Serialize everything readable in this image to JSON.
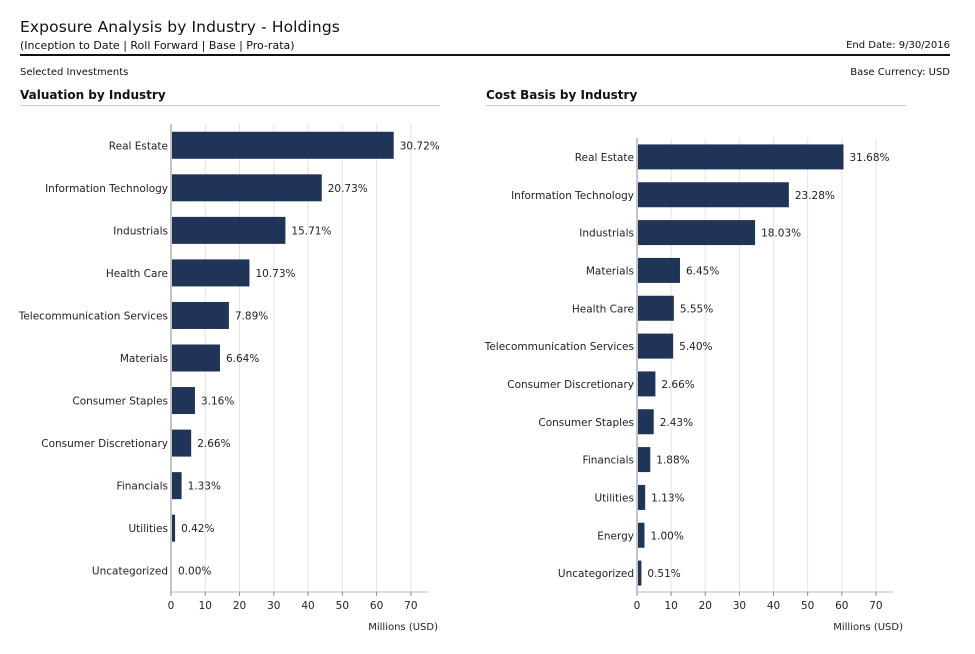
{
  "header": {
    "title": "Exposure Analysis by Industry - Holdings",
    "subtitle": "(Inception to Date | Roll Forward | Base | Pro-rata)",
    "end_date": "End Date: 9/30/2016",
    "selected": "Selected Investments",
    "currency": "Base Currency: USD"
  },
  "colors": {
    "bar": "#1f3457",
    "grid": "#e3e3e3",
    "axis": "#8a8a8a"
  },
  "chart_data": [
    {
      "type": "bar",
      "orientation": "horizontal",
      "title": "Valuation by Industry",
      "xlabel": "Millions (USD)",
      "ylabel": "",
      "xlim": [
        0,
        75
      ],
      "xticks": [
        0,
        10,
        20,
        30,
        40,
        50,
        60,
        70
      ],
      "categories": [
        "Real Estate",
        "Information Technology",
        "Industrials",
        "Health Care",
        "Telecommunication Services",
        "Materials",
        "Consumer Staples",
        "Consumer Discretionary",
        "Financials",
        "Utilities",
        "Uncategorized"
      ],
      "values": [
        64.7,
        43.7,
        33.1,
        22.6,
        16.6,
        14.0,
        6.7,
        5.6,
        2.8,
        0.9,
        0.0
      ],
      "labels": [
        "30.72%",
        "20.73%",
        "15.71%",
        "10.73%",
        "7.89%",
        "6.64%",
        "3.16%",
        "2.66%",
        "1.33%",
        "0.42%",
        "0.00%"
      ],
      "grid": true
    },
    {
      "type": "bar",
      "orientation": "horizontal",
      "title": "Cost Basis by Industry",
      "xlabel": "Millions (USD)",
      "ylabel": "",
      "xlim": [
        0,
        75
      ],
      "xticks": [
        0,
        10,
        20,
        30,
        40,
        50,
        60,
        70
      ],
      "categories": [
        "Real Estate",
        "Information Technology",
        "Industrials",
        "Materials",
        "Health Care",
        "Telecommunication Services",
        "Consumer Discretionary",
        "Consumer Staples",
        "Financials",
        "Utilities",
        "Energy",
        "Uncategorized"
      ],
      "values": [
        60.2,
        44.2,
        34.3,
        12.3,
        10.5,
        10.3,
        5.1,
        4.6,
        3.6,
        2.1,
        1.9,
        1.0
      ],
      "labels": [
        "31.68%",
        "23.28%",
        "18.03%",
        "6.45%",
        "5.55%",
        "5.40%",
        "2.66%",
        "2.43%",
        "1.88%",
        "1.13%",
        "1.00%",
        "0.51%"
      ],
      "grid": true
    }
  ]
}
